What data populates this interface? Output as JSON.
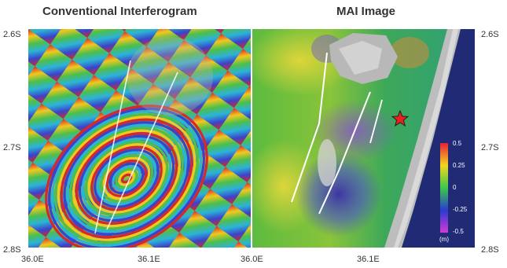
{
  "titles": {
    "left": "Conventional Interferogram",
    "right": "MAI Image"
  },
  "axes": {
    "lat_left_top": "2.6S",
    "lat_left_mid": "2.7S",
    "lat_left_bottom": "2.8S",
    "lat_right_top": "2.6S",
    "lat_right_mid": "2.7S",
    "lat_right_bottom": "2.8S",
    "lon_left_1": "36.0E",
    "lon_left_2": "36.1E",
    "lon_right_1": "36.0E",
    "lon_right_2": "36.1E"
  },
  "legend": {
    "labels": [
      "0.5",
      "0.25",
      "0",
      "-0.25",
      "-0.5"
    ],
    "unit": "(m)",
    "colors": [
      "#e8203a",
      "#f5d51e",
      "#3cc94a",
      "#2a3bd0",
      "#d23bd6"
    ]
  },
  "marker": {
    "icon": "red-star-icon",
    "color": "#e8201e"
  },
  "fault_line_color": "#ffffff"
}
